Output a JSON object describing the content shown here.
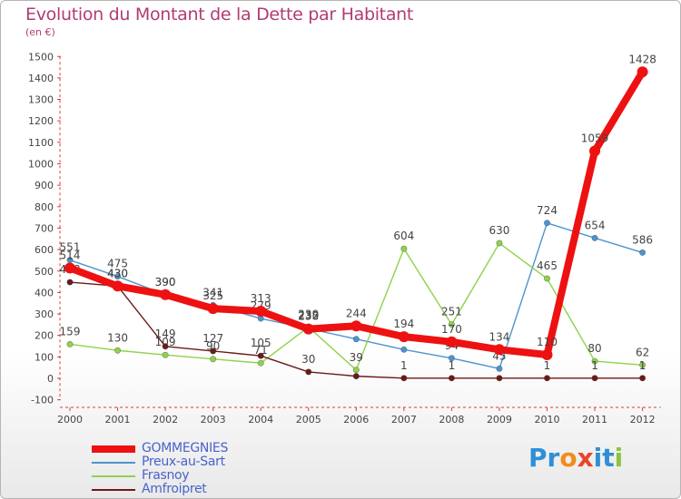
{
  "header": {
    "title": "Evolution du Montant de la Dette par Habitant",
    "unit": "(en €)"
  },
  "chart_data": {
    "type": "line",
    "title": "Evolution du Montant de la Dette par Habitant",
    "ylabel": "(en €)",
    "ylim": [
      -100,
      1500
    ],
    "y_ticks": [
      -100,
      0,
      100,
      200,
      300,
      400,
      500,
      600,
      700,
      800,
      900,
      1000,
      1100,
      1200,
      1300,
      1400,
      1500
    ],
    "x": [
      "2000",
      "2001",
      "2002",
      "2003",
      "2004",
      "2005",
      "2006",
      "2007",
      "2008",
      "2009",
      "2010",
      "2011",
      "2012"
    ],
    "series": [
      {
        "name": "Preux-au-Sart",
        "color": "#4d94cf",
        "thick": false,
        "values": [
          551,
          475,
          390,
          341,
          279,
          232,
          183,
          134,
          94,
          45,
          724,
          654,
          586
        ],
        "labels": [
          "551",
          "475",
          "390",
          "341",
          "279",
          "232",
          "",
          "",
          "94",
          "45",
          "724",
          "654",
          "586"
        ]
      },
      {
        "name": "Frasnoy",
        "color": "#8fd24c",
        "thick": false,
        "values": [
          159,
          130,
          109,
          90,
          71,
          239,
          39,
          604,
          251,
          630,
          465,
          80,
          62
        ],
        "labels": [
          "159",
          "130",
          "109",
          "90",
          "71",
          "239",
          "39",
          "604",
          "251",
          "630",
          "465",
          "80",
          "62"
        ]
      },
      {
        "name": "Amfroipret",
        "color": "#6b1a1a",
        "thick": false,
        "values": [
          448,
          430,
          149,
          127,
          105,
          30,
          10,
          1,
          1,
          1,
          1,
          1,
          1
        ],
        "labels": [
          "448",
          "430",
          "149",
          "127",
          "105",
          "30",
          "",
          "1",
          "1",
          "",
          "1",
          "1",
          "1"
        ]
      },
      {
        "name": "GOMMEGNIES",
        "color": "#ee1111",
        "thick": true,
        "values": [
          514,
          430,
          390,
          325,
          313,
          230,
          244,
          194,
          170,
          134,
          110,
          1059,
          1428
        ],
        "labels": [
          "514",
          "430",
          "390",
          "325",
          "313",
          "230",
          "244",
          "194",
          "170",
          "134",
          "110",
          "1059",
          "1428"
        ]
      }
    ],
    "legend": [
      "GOMMEGNIES",
      "Preux-au-Sart",
      "Frasnoy",
      "Amfroipret"
    ],
    "grid": false,
    "legend_position": "bottom-left"
  },
  "logo": {
    "letters": [
      "P",
      "r",
      "o",
      "x",
      "i",
      "t",
      "i"
    ],
    "colors": [
      "#2f8fd6",
      "#2f8fd6",
      "#f28c1c",
      "#e8452b",
      "#2f8fd6",
      "#2f8fd6",
      "#8cc63f"
    ]
  }
}
